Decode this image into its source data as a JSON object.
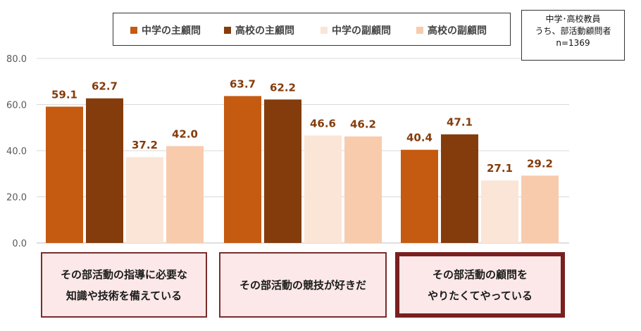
{
  "legend": {
    "items": [
      {
        "label": "中学の主顧問",
        "color": "#c55a11"
      },
      {
        "label": "高校の主顧問",
        "color": "#843c0c"
      },
      {
        "label": "中学の副顧問",
        "color": "#fbe5d6"
      },
      {
        "label": "高校の副顧問",
        "color": "#f8cbad"
      }
    ]
  },
  "note": {
    "line1": "中学･高校教員",
    "line2": "うち、部活動顧問者",
    "line3": "n=1369"
  },
  "categories": [
    {
      "line1": "その部活動の指導に必要な",
      "line2": "知識や技術を備えている",
      "highlight": false
    },
    {
      "line1": "その部活動の競技が好きだ",
      "line2": "",
      "highlight": false
    },
    {
      "line1": "その部活動の顧問を",
      "line2": "やりたくてやっている",
      "highlight": true
    }
  ],
  "chart_data": {
    "type": "bar",
    "categories": [
      "その部活動の指導に必要な知識や技術を備えている",
      "その部活動の競技が好きだ",
      "その部活動の顧問をやりたくてやっている"
    ],
    "series": [
      {
        "name": "中学の主顧問",
        "values": [
          59.1,
          63.7,
          40.4
        ]
      },
      {
        "name": "高校の主顧問",
        "values": [
          62.7,
          62.2,
          47.1
        ]
      },
      {
        "name": "中学の副顧問",
        "values": [
          37.2,
          46.6,
          27.1
        ]
      },
      {
        "name": "高校の副顧問",
        "values": [
          42.0,
          46.2,
          29.2
        ]
      }
    ],
    "ylim": [
      0,
      80
    ],
    "yticks": [
      "0.0",
      "20.0",
      "40.0",
      "60.0",
      "80.0"
    ],
    "value_label_color": "#843c0c",
    "grid": true
  }
}
